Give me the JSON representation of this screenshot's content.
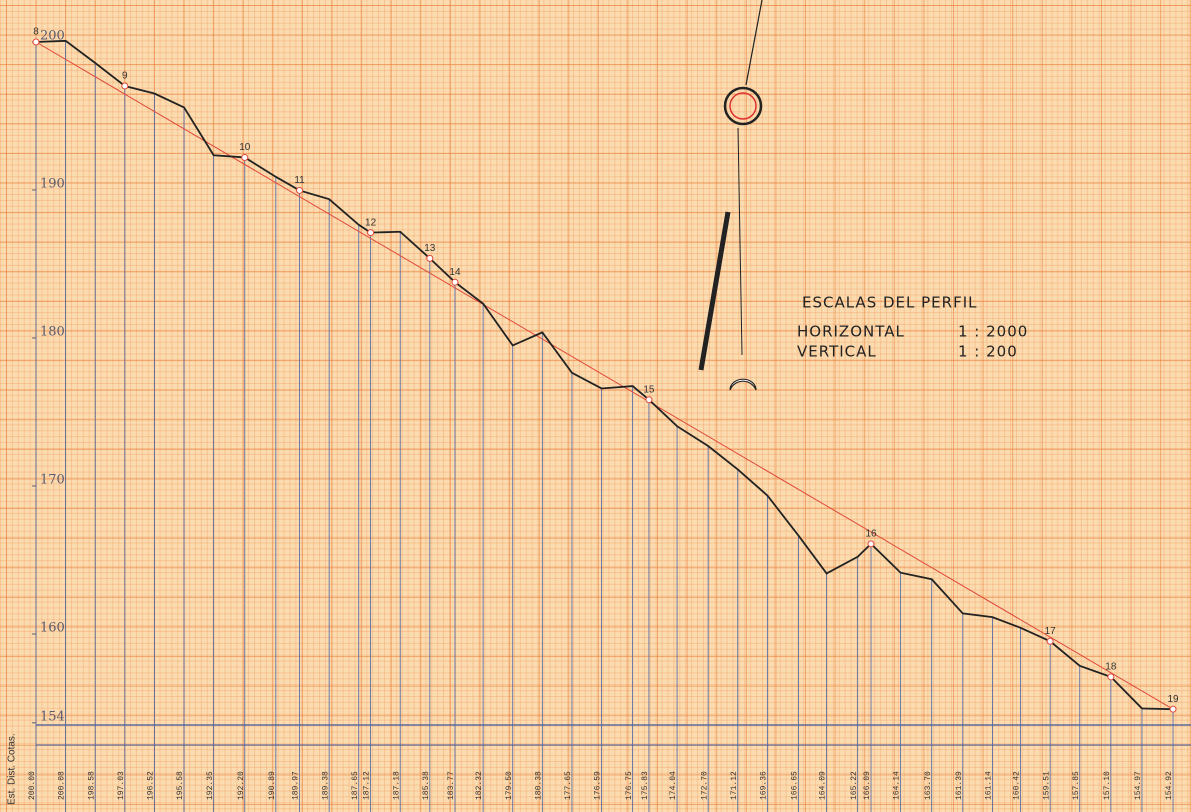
{
  "chart_data": {
    "type": "line",
    "x": [
      0,
      20,
      40,
      60,
      80,
      100,
      120,
      141,
      162,
      178,
      198,
      218,
      226,
      246,
      266,
      283,
      302,
      322,
      342,
      362,
      382,
      403,
      414,
      433,
      454,
      474,
      494,
      515,
      534,
      555,
      564,
      584,
      605,
      626,
      646,
      665,
      685,
      705,
      726,
      747,
      768
    ],
    "series": [
      {
        "color": "#222222",
        "values": [
          200.0,
          200.08,
          198.58,
          197.03,
          196.52,
          195.58,
          192.35,
          192.2,
          190.89,
          189.97,
          189.38,
          187.65,
          187.12,
          187.18,
          185.38,
          183.77,
          182.32,
          179.5,
          180.38,
          177.65,
          176.59,
          176.75,
          175.83,
          174.04,
          172.7,
          171.12,
          169.36,
          166.65,
          164.09,
          165.22,
          166.09,
          164.14,
          163.7,
          161.39,
          161.14,
          160.42,
          159.51,
          157.85,
          157.1,
          154.97,
          154.92
        ],
        "value_labels": [
          "200.00",
          "200.08",
          "198.58",
          "197.03",
          "196.52",
          "195.58",
          "192.35",
          "192.20",
          "190.89",
          "189.97",
          "189.38",
          "187.65",
          "187.12",
          "187.18",
          "185.38",
          "183.77",
          "182.32",
          "179.50",
          "180.38",
          "177.65",
          "176.59",
          "176.75",
          "175.83",
          "174.04",
          "172.70",
          "171.12",
          "169.36",
          "166.65",
          "164.09",
          "165.22",
          "166.09",
          "164.14",
          "163.70",
          "161.39",
          "161.14",
          "160.42",
          "159.51",
          "157.85",
          "157.10",
          "154.97",
          "154.92"
        ]
      }
    ],
    "point_labels": [
      "8",
      null,
      null,
      "9",
      null,
      null,
      null,
      "10",
      null,
      "11",
      null,
      null,
      "12",
      null,
      "13",
      "14",
      null,
      null,
      null,
      null,
      null,
      null,
      "15",
      null,
      null,
      null,
      null,
      null,
      null,
      null,
      "16",
      null,
      null,
      null,
      null,
      null,
      "17",
      null,
      "18",
      null,
      "19"
    ],
    "grade_line": {
      "color": "#e0483a",
      "x": [
        0,
        768
      ],
      "values": [
        200.0,
        154.92
      ]
    },
    "drop_line_color": "#4a64a8",
    "xlim": [
      0,
      770
    ],
    "ylim": [
      154,
      201
    ],
    "yticks": [
      154,
      160,
      170,
      180,
      190,
      200
    ],
    "table_header": "Est. Dist. Cotas."
  },
  "scales": {
    "title": "ESCALAS DEL PERFIL",
    "horizontal": {
      "label": "HORIZONTAL",
      "value": "1 : 2000"
    },
    "vertical": {
      "label": "VERTICAL",
      "value": "1 : 200"
    }
  }
}
